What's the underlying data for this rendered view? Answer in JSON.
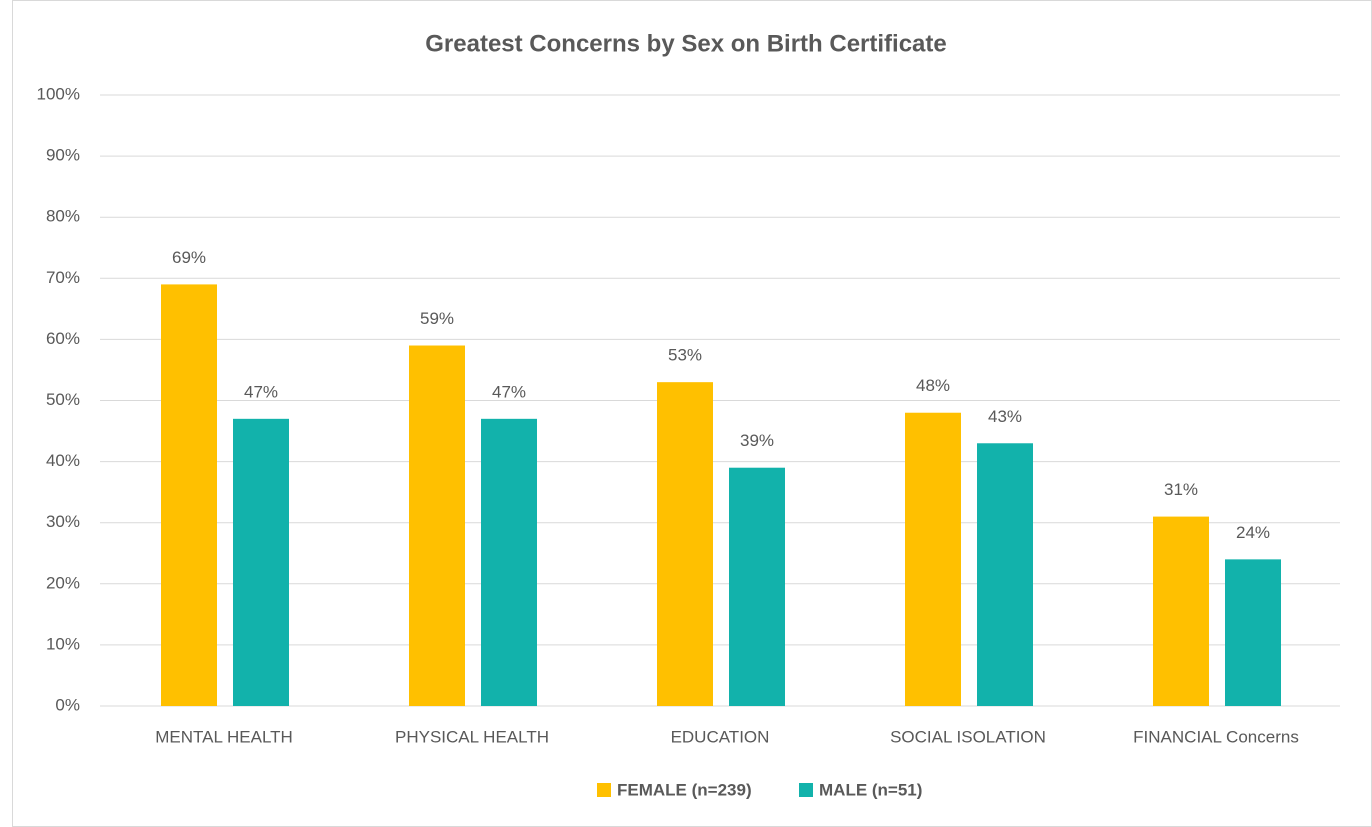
{
  "chart_data": {
    "type": "bar",
    "title": "Greatest Concerns by Sex on Birth Certificate",
    "categories": [
      "MENTAL HEALTH",
      "PHYSICAL HEALTH",
      "EDUCATION",
      "SOCIAL ISOLATION",
      "FINANCIAL Concerns"
    ],
    "series": [
      {
        "name": "FEMALE (n=239)",
        "color": "#FFC000",
        "values": [
          69,
          59,
          53,
          48,
          31
        ],
        "value_labels": [
          "69%",
          "59%",
          "53%",
          "48%",
          "31%"
        ]
      },
      {
        "name": "MALE (n=51)",
        "color": "#12B2AB",
        "values": [
          47,
          47,
          39,
          43,
          24
        ],
        "value_labels": [
          "47%",
          "47%",
          "39%",
          "43%",
          "24%"
        ]
      }
    ],
    "ylim": [
      0,
      100
    ],
    "yticks": [
      {
        "value": 0,
        "label": "0%"
      },
      {
        "value": 10,
        "label": "10%"
      },
      {
        "value": 20,
        "label": "20%"
      },
      {
        "value": 30,
        "label": "30%"
      },
      {
        "value": 40,
        "label": "40%"
      },
      {
        "value": 50,
        "label": "50%"
      },
      {
        "value": 60,
        "label": "60%"
      },
      {
        "value": 70,
        "label": "70%"
      },
      {
        "value": 80,
        "label": "80%"
      },
      {
        "value": 90,
        "label": "90%"
      },
      {
        "value": 100,
        "label": "100%"
      }
    ],
    "grid": true,
    "legend": "bottom"
  }
}
